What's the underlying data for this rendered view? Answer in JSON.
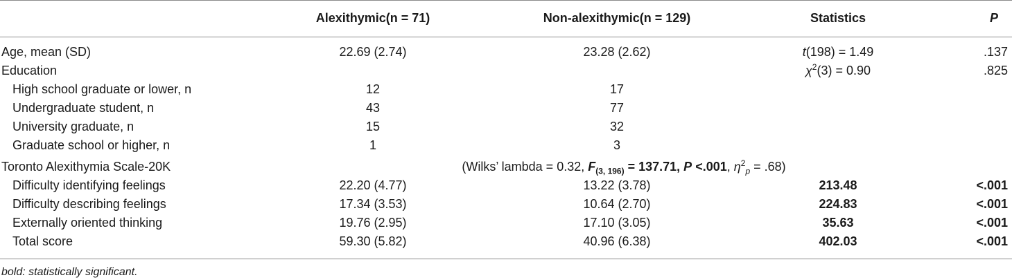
{
  "headers": {
    "col0": "",
    "col1": "Alexithymic(n = 71)",
    "col2": "Non-alexithymic(n = 129)",
    "col3": "Statistics",
    "col4": "P"
  },
  "rows": [
    {
      "label": "Age, mean (SD)",
      "alex": "22.69 (2.74)",
      "non": "23.28 (2.62)",
      "stat_pre": "t",
      "stat_post": "(198) = 1.49",
      "p": ".137"
    },
    {
      "label": "Education",
      "alex": "",
      "non": "",
      "stat_pre": "χ",
      "stat_sup": "2",
      "stat_post": "(3) = 0.90",
      "p": ".825"
    },
    {
      "label": "High school graduate or lower, n",
      "alex": "12",
      "non": "17"
    },
    {
      "label": "Undergraduate student, n",
      "alex": "43",
      "non": "77"
    },
    {
      "label": "University graduate, n",
      "alex": "15",
      "non": "32"
    },
    {
      "label": "Graduate school or higher, n",
      "alex": "1",
      "non": "3"
    },
    {
      "label": "Toronto Alexithymia Scale-20K"
    },
    {
      "label": "Difficulty identifying feelings",
      "alex": "22.20 (4.77)",
      "non": "13.22 (3.78)",
      "stat": "213.48",
      "p": "<.001"
    },
    {
      "label": "Difficulty describing feelings",
      "alex": "17.34 (3.53)",
      "non": "10.64 (2.70)",
      "stat": "224.83",
      "p": "<.001"
    },
    {
      "label": "Externally oriented thinking",
      "alex": "19.76 (2.95)",
      "non": "17.10 (3.05)",
      "stat": "35.63",
      "p": "<.001"
    },
    {
      "label": "Total score",
      "alex": "59.30 (5.82)",
      "non": "40.96 (6.38)",
      "stat": "402.03",
      "p": "<.001"
    }
  ],
  "wilks": {
    "open": "(Wilks’ lambda = 0.32, ",
    "F": "F",
    "F_sub": "(3, 196)",
    "F_val": " = 137.71, ",
    "P": "P",
    "P_val": " <.001",
    "sep": ", ",
    "eta": "η",
    "eta_sup": "2",
    "eta_sub": "p",
    "eta_val": " = .68)"
  },
  "footnote": "bold: statistically significant."
}
